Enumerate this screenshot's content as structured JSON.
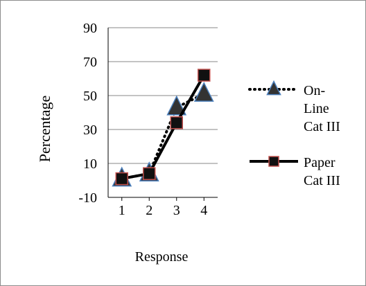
{
  "chart_data": {
    "type": "line",
    "title": "",
    "xlabel": "Response",
    "ylabel": "Percentage",
    "x": [
      1,
      2,
      3,
      4
    ],
    "xticks": [
      "1",
      "2",
      "3",
      "4"
    ],
    "yticks": [
      "-10",
      "10",
      "30",
      "50",
      "70",
      "90"
    ],
    "ylim": [
      -10,
      90
    ],
    "grid": "horizontal",
    "legend_position": "right",
    "series": [
      {
        "name_lines": [
          "On-",
          "Line",
          "Cat III"
        ],
        "values": [
          1,
          4,
          43,
          51
        ],
        "line_style": "dotted",
        "marker": "triangle",
        "color": "#000000",
        "marker_fill": "#333333",
        "marker_edge": "#4a7ebb"
      },
      {
        "name_lines": [
          "Paper",
          "Cat III"
        ],
        "values": [
          1,
          4,
          34,
          62
        ],
        "line_style": "solid",
        "marker": "square",
        "color": "#000000",
        "marker_fill": "#111111",
        "marker_edge": "#c0504d"
      }
    ]
  }
}
